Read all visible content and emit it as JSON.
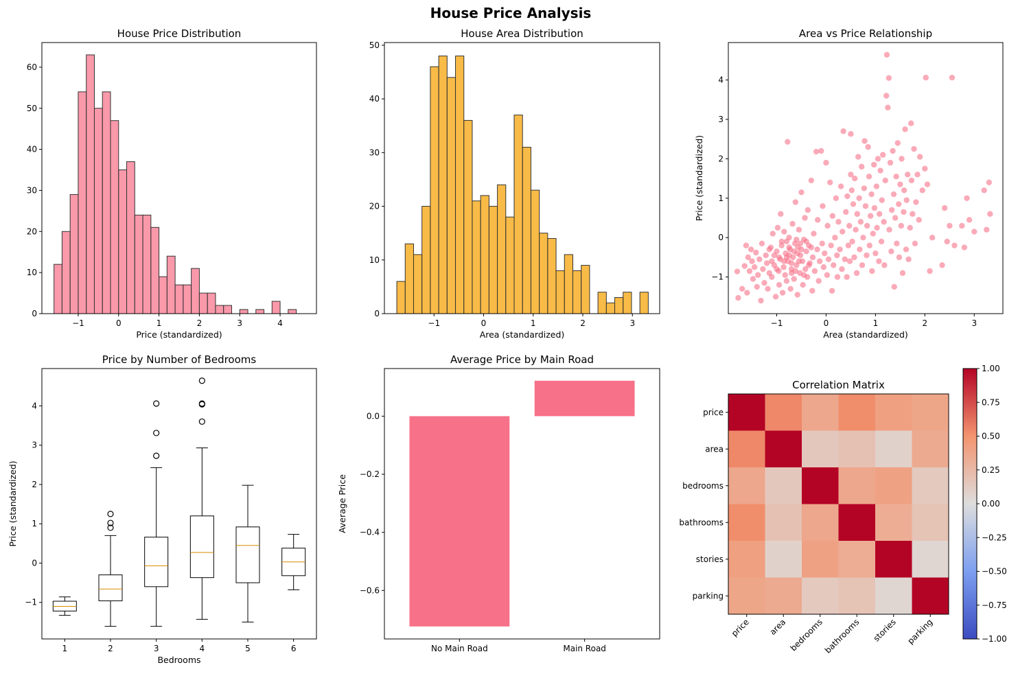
{
  "suptitle": "House Price Analysis",
  "colors": {
    "pink": "#f77189",
    "orange": "#f6a100",
    "edge": "#333333",
    "median": "#d68b00"
  },
  "chart_data": [
    {
      "type": "bar",
      "subtype": "histogram",
      "title": "House Price Distribution",
      "xlabel": "Price (standardized)",
      "ylabel": "",
      "bin_start": -1.6,
      "bin_width": 0.2,
      "counts": [
        12,
        20,
        29,
        54,
        63,
        50,
        54,
        47,
        35,
        37,
        24,
        24,
        21,
        9,
        14,
        7,
        7,
        11,
        5,
        5,
        2,
        2,
        0,
        1,
        0,
        1,
        0,
        3,
        0,
        1
      ],
      "xlim": [
        -1.9,
        4.9
      ],
      "ylim": [
        0,
        66
      ],
      "xticks": [
        -1,
        0,
        1,
        2,
        3,
        4
      ],
      "yticks": [
        0,
        10,
        20,
        30,
        40,
        50,
        60
      ],
      "xtick_labels": [
        "−1",
        "0",
        "1",
        "2",
        "3",
        "4"
      ],
      "ytick_labels": [
        "0",
        "10",
        "20",
        "30",
        "40",
        "50",
        "60"
      ],
      "color": "#f77189"
    },
    {
      "type": "bar",
      "subtype": "histogram",
      "title": "House Area Distribution",
      "xlabel": "Area (standardized)",
      "ylabel": "",
      "bin_start": -1.75,
      "bin_width": 0.169,
      "counts": [
        6,
        13,
        11,
        20,
        46,
        48,
        44,
        48,
        36,
        21,
        22,
        20,
        24,
        18,
        37,
        31,
        23,
        15,
        14,
        8,
        11,
        8,
        9,
        0,
        4,
        2,
        3,
        4,
        0,
        4
      ],
      "xlim": [
        -2.0,
        3.55
      ],
      "ylim": [
        0,
        50.5
      ],
      "xticks": [
        -1,
        0,
        1,
        2,
        3
      ],
      "yticks": [
        0,
        10,
        20,
        30,
        40,
        50
      ],
      "xtick_labels": [
        "−1",
        "0",
        "1",
        "2",
        "3"
      ],
      "ytick_labels": [
        "0",
        "10",
        "20",
        "30",
        "40",
        "50"
      ],
      "color": "#f6a100"
    },
    {
      "type": "scatter",
      "title": "Area vs Price Relationship",
      "xlabel": "Area (standardized)",
      "ylabel": "Price (standardized)",
      "xlim": [
        -1.98,
        3.58
      ],
      "ylim": [
        -1.93,
        4.95
      ],
      "xticks": [
        -1,
        0,
        1,
        2,
        3
      ],
      "yticks": [
        -1,
        0,
        1,
        2,
        3,
        4
      ],
      "xtick_labels": [
        "−1",
        "0",
        "1",
        "2",
        "3"
      ],
      "ytick_labels": [
        "−1",
        "0",
        "1",
        "2",
        "3",
        "4"
      ],
      "color": "#f77189",
      "points": [
        [
          -1.8,
          -0.86
        ],
        [
          -1.78,
          -1.53
        ],
        [
          -1.7,
          -1.3
        ],
        [
          -1.65,
          -0.72
        ],
        [
          -1.62,
          -0.2
        ],
        [
          -1.6,
          -1.4
        ],
        [
          -1.58,
          -0.5
        ],
        [
          -1.55,
          -0.85
        ],
        [
          -1.52,
          -0.3
        ],
        [
          -1.5,
          -0.6
        ],
        [
          -1.48,
          -1.05
        ],
        [
          -1.45,
          -0.75
        ],
        [
          -1.42,
          -0.38
        ],
        [
          -1.4,
          -1.25
        ],
        [
          -1.38,
          -0.95
        ],
        [
          -1.35,
          -0.55
        ],
        [
          -1.32,
          -1.6
        ],
        [
          -1.3,
          -0.15
        ],
        [
          -1.28,
          -0.8
        ],
        [
          -1.25,
          -1.15
        ],
        [
          -1.22,
          -0.45
        ],
        [
          -1.2,
          -0.65
        ],
        [
          -1.18,
          -1.3
        ],
        [
          -1.15,
          -0.9
        ],
        [
          -1.12,
          -0.25
        ],
        [
          -1.1,
          -1.0
        ],
        [
          -1.08,
          0.1
        ],
        [
          -1.05,
          -0.7
        ],
        [
          -1.02,
          -1.5
        ],
        [
          -1.0,
          -0.35
        ],
        [
          -0.98,
          0.25
        ],
        [
          -0.96,
          -0.85
        ],
        [
          -0.95,
          -1.2
        ],
        [
          -0.93,
          -0.55
        ],
        [
          -0.92,
          0.6
        ],
        [
          -0.9,
          -0.1
        ],
        [
          -0.88,
          -1.4
        ],
        [
          -0.86,
          -0.75
        ],
        [
          -0.85,
          0.15
        ],
        [
          -0.83,
          -0.95
        ],
        [
          -0.82,
          -0.4
        ],
        [
          -0.8,
          -1.1
        ],
        [
          -0.78,
          2.43
        ],
        [
          -0.77,
          -0.6
        ],
        [
          -0.75,
          0.0
        ],
        [
          -0.73,
          -0.3
        ],
        [
          -0.72,
          -1.3
        ],
        [
          -0.7,
          -0.8
        ],
        [
          -0.68,
          0.35
        ],
        [
          -0.67,
          -0.5
        ],
        [
          -0.65,
          -1.05
        ],
        [
          -0.63,
          -0.15
        ],
        [
          -0.62,
          0.9
        ],
        [
          -0.6,
          -0.7
        ],
        [
          -0.58,
          -1.45
        ],
        [
          -0.57,
          -0.25
        ],
        [
          -0.55,
          0.2
        ],
        [
          -0.53,
          -0.9
        ],
        [
          -0.52,
          -0.45
        ],
        [
          -0.5,
          1.15
        ],
        [
          -0.48,
          -0.6
        ],
        [
          -0.47,
          -1.2
        ],
        [
          -0.45,
          -0.05
        ],
        [
          -0.43,
          0.5
        ],
        [
          -0.42,
          -0.8
        ],
        [
          -0.4,
          -0.35
        ],
        [
          -0.38,
          -1.0
        ],
        [
          -0.37,
          0.7
        ],
        [
          -0.35,
          -0.2
        ],
        [
          -0.33,
          -0.65
        ],
        [
          -0.3,
          1.45
        ],
        [
          -0.28,
          -1.35
        ],
        [
          -0.27,
          -0.5
        ],
        [
          -0.25,
          0.1
        ],
        [
          -0.23,
          -0.85
        ],
        [
          -0.2,
          2.18
        ],
        [
          -0.18,
          -0.3
        ],
        [
          -0.17,
          0.45
        ],
        [
          -0.15,
          -1.1
        ],
        [
          -0.13,
          -0.6
        ],
        [
          -0.1,
          2.2
        ],
        [
          -0.08,
          -0.15
        ],
        [
          -0.07,
          0.8
        ],
        [
          -0.05,
          -0.75
        ],
        [
          -0.03,
          -0.4
        ],
        [
          0.0,
          1.9
        ],
        [
          0.02,
          -0.95
        ],
        [
          0.03,
          0.3
        ],
        [
          0.05,
          -0.55
        ],
        [
          0.08,
          1.4
        ],
        [
          0.1,
          -0.2
        ],
        [
          0.12,
          -1.35
        ],
        [
          0.13,
          0.55
        ],
        [
          0.15,
          -0.7
        ],
        [
          0.18,
          0.0
        ],
        [
          0.2,
          1.0
        ],
        [
          0.22,
          -0.45
        ],
        [
          0.23,
          -1.0
        ],
        [
          0.25,
          0.4
        ],
        [
          0.28,
          -0.3
        ],
        [
          0.3,
          1.3
        ],
        [
          0.32,
          -0.8
        ],
        [
          0.33,
          0.15
        ],
        [
          0.35,
          2.7
        ],
        [
          0.38,
          -0.55
        ],
        [
          0.4,
          0.65
        ],
        [
          0.42,
          -1.0
        ],
        [
          0.43,
          1.05
        ],
        [
          0.45,
          -0.2
        ],
        [
          0.47,
          0.3
        ],
        [
          0.48,
          -0.6
        ],
        [
          0.5,
          2.63
        ],
        [
          0.5,
          1.6
        ],
        [
          0.52,
          1.2
        ],
        [
          0.53,
          -0.1
        ],
        [
          0.55,
          0.85
        ],
        [
          0.57,
          -0.5
        ],
        [
          0.58,
          1.5
        ],
        [
          0.6,
          0.2
        ],
        [
          0.62,
          -0.9
        ],
        [
          0.63,
          0.6
        ],
        [
          0.65,
          2.05
        ],
        [
          0.67,
          1.0
        ],
        [
          0.68,
          -0.3
        ],
        [
          0.7,
          0.4
        ],
        [
          0.72,
          1.8
        ],
        [
          0.73,
          -0.7
        ],
        [
          0.75,
          0.0
        ],
        [
          0.77,
          1.25
        ],
        [
          0.78,
          2.45
        ],
        [
          0.8,
          0.8
        ],
        [
          0.82,
          -0.45
        ],
        [
          0.83,
          0.3
        ],
        [
          0.85,
          2.3
        ],
        [
          0.87,
          1.55
        ],
        [
          0.88,
          -0.2
        ],
        [
          0.9,
          0.55
        ],
        [
          0.92,
          1.1
        ],
        [
          0.93,
          -0.85
        ],
        [
          0.95,
          0.1
        ],
        [
          0.97,
          1.85
        ],
        [
          0.98,
          0.75
        ],
        [
          1.0,
          -0.4
        ],
        [
          1.02,
          1.3
        ],
        [
          1.03,
          0.25
        ],
        [
          1.05,
          2.0
        ],
        [
          1.07,
          -0.6
        ],
        [
          1.08,
          0.6
        ],
        [
          1.1,
          1.7
        ],
        [
          1.12,
          -0.1
        ],
        [
          1.13,
          0.95
        ],
        [
          1.15,
          2.1
        ],
        [
          1.17,
          0.4
        ],
        [
          1.18,
          -0.7
        ],
        [
          1.2,
          1.45
        ],
        [
          1.22,
          3.6
        ],
        [
          1.23,
          4.64
        ],
        [
          1.25,
          3.3
        ],
        [
          1.27,
          4.05
        ],
        [
          1.28,
          0.2
        ],
        [
          1.3,
          1.9
        ],
        [
          1.32,
          -0.35
        ],
        [
          1.33,
          0.7
        ],
        [
          1.35,
          2.2
        ],
        [
          1.37,
          1.1
        ],
        [
          1.38,
          -1.25
        ],
        [
          1.4,
          0.5
        ],
        [
          1.42,
          1.55
        ],
        [
          1.43,
          -0.15
        ],
        [
          1.45,
          2.4
        ],
        [
          1.47,
          0.85
        ],
        [
          1.48,
          -0.5
        ],
        [
          1.5,
          1.35
        ],
        [
          1.52,
          0.3
        ],
        [
          1.53,
          2.0
        ],
        [
          1.55,
          -0.9
        ],
        [
          1.57,
          0.65
        ],
        [
          1.58,
          1.2
        ],
        [
          1.6,
          2.75
        ],
        [
          1.62,
          -0.3
        ],
        [
          1.63,
          0.95
        ],
        [
          1.65,
          1.6
        ],
        [
          1.67,
          -0.55
        ],
        [
          1.7,
          0.25
        ],
        [
          1.72,
          2.9
        ],
        [
          1.73,
          1.45
        ],
        [
          1.75,
          0.6
        ],
        [
          1.78,
          2.25
        ],
        [
          1.8,
          -0.15
        ],
        [
          1.82,
          0.9
        ],
        [
          1.85,
          1.6
        ],
        [
          1.88,
          0.45
        ],
        [
          1.9,
          2.05
        ],
        [
          1.95,
          1.2
        ],
        [
          2.0,
          1.75
        ],
        [
          2.02,
          4.06
        ],
        [
          2.05,
          1.35
        ],
        [
          2.1,
          -0.85
        ],
        [
          2.15,
          0.0
        ],
        [
          2.35,
          -0.7
        ],
        [
          2.4,
          0.75
        ],
        [
          2.45,
          -0.1
        ],
        [
          2.5,
          0.3
        ],
        [
          2.55,
          4.06
        ],
        [
          2.6,
          -0.2
        ],
        [
          2.75,
          0.3
        ],
        [
          2.8,
          -0.25
        ],
        [
          2.85,
          1.0
        ],
        [
          2.9,
          0.45
        ],
        [
          3.0,
          0.15
        ],
        [
          3.2,
          1.2
        ],
        [
          3.25,
          0.2
        ],
        [
          3.3,
          1.4
        ],
        [
          3.32,
          0.6
        ],
        [
          -0.95,
          -0.5
        ],
        [
          -0.9,
          -0.2
        ],
        [
          -0.85,
          -0.6
        ],
        [
          -0.8,
          -0.1
        ],
        [
          -0.75,
          -0.45
        ],
        [
          -0.7,
          -0.9
        ],
        [
          -0.65,
          -0.35
        ],
        [
          -0.6,
          -0.05
        ],
        [
          -0.55,
          -0.6
        ],
        [
          -0.5,
          -0.3
        ],
        [
          -0.45,
          -0.95
        ],
        [
          -0.4,
          -0.1
        ],
        [
          -0.35,
          -0.7
        ],
        [
          -0.3,
          -0.25
        ],
        [
          -1.0,
          -0.8
        ],
        [
          -1.05,
          -0.45
        ],
        [
          -1.1,
          -0.6
        ],
        [
          -1.15,
          -0.3
        ],
        [
          -0.7,
          -0.65
        ],
        [
          -0.62,
          -0.85
        ],
        [
          -0.58,
          -0.4
        ],
        [
          -0.52,
          -0.15
        ],
        [
          -0.75,
          -0.25
        ],
        [
          -0.8,
          -0.5
        ]
      ]
    },
    {
      "type": "box",
      "title": "Price by Number of Bedrooms",
      "xlabel": "Bedrooms",
      "ylabel": "Price (standardized)",
      "xlim": [
        0.5,
        6.5
      ],
      "ylim": [
        -1.93,
        4.95
      ],
      "yticks": [
        -1,
        0,
        1,
        2,
        3,
        4
      ],
      "ytick_labels": [
        "−1",
        "0",
        "1",
        "2",
        "3",
        "4"
      ],
      "categories": [
        "1",
        "2",
        "3",
        "4",
        "5",
        "6"
      ],
      "boxes": [
        {
          "min": -1.33,
          "q1": -1.22,
          "median": -1.1,
          "q3": -0.97,
          "max": -0.86,
          "outliers": []
        },
        {
          "min": -1.61,
          "q1": -0.96,
          "median": -0.66,
          "q3": -0.3,
          "max": 0.7,
          "outliers": [
            0.9,
            1.02,
            1.25
          ]
        },
        {
          "min": -1.61,
          "q1": -0.6,
          "median": -0.07,
          "q3": 0.66,
          "max": 2.43,
          "outliers": [
            2.73,
            3.31,
            4.06
          ]
        },
        {
          "min": -1.43,
          "q1": -0.37,
          "median": 0.27,
          "q3": 1.2,
          "max": 2.93,
          "outliers": [
            3.6,
            4.04,
            4.06,
            4.64
          ]
        },
        {
          "min": -1.5,
          "q1": -0.5,
          "median": 0.45,
          "q3": 0.92,
          "max": 1.98,
          "outliers": []
        },
        {
          "min": -0.68,
          "q1": -0.32,
          "median": 0.03,
          "q3": 0.38,
          "max": 0.73,
          "outliers": []
        }
      ],
      "color": "#000000"
    },
    {
      "type": "bar",
      "title": "Average Price by Main Road",
      "xlabel": "",
      "ylabel": "Average Price",
      "categories": [
        "No Main Road",
        "Main Road"
      ],
      "values": [
        -0.724,
        0.122
      ],
      "ylim": [
        -0.767,
        0.164
      ],
      "yticks": [
        -0.6,
        -0.4,
        -0.2,
        0.0
      ],
      "ytick_labels": [
        "−0.6",
        "−0.4",
        "−0.2",
        "0.0"
      ],
      "color": "#f77189"
    },
    {
      "type": "heatmap",
      "title": "Correlation Matrix",
      "labels": [
        "price",
        "area",
        "bedrooms",
        "bathrooms",
        "stories",
        "parking"
      ],
      "matrix": [
        [
          1.0,
          0.54,
          0.37,
          0.52,
          0.42,
          0.38
        ],
        [
          0.54,
          1.0,
          0.15,
          0.19,
          0.08,
          0.35
        ],
        [
          0.37,
          0.15,
          1.0,
          0.37,
          0.41,
          0.14
        ],
        [
          0.52,
          0.19,
          0.37,
          1.0,
          0.33,
          0.18
        ],
        [
          0.42,
          0.08,
          0.41,
          0.33,
          1.0,
          0.05
        ],
        [
          0.38,
          0.35,
          0.14,
          0.18,
          0.05,
          1.0
        ]
      ],
      "vmin": -1,
      "vmax": 1,
      "colormap": "coolwarm",
      "colorbar_ticks": [
        -1,
        -0.75,
        -0.5,
        -0.25,
        0,
        0.25,
        0.5,
        0.75,
        1
      ],
      "colorbar_tick_labels": [
        "−1.00",
        "−0.75",
        "−0.50",
        "−0.25",
        "0.00",
        "0.25",
        "0.50",
        "0.75",
        "1.00"
      ]
    }
  ]
}
